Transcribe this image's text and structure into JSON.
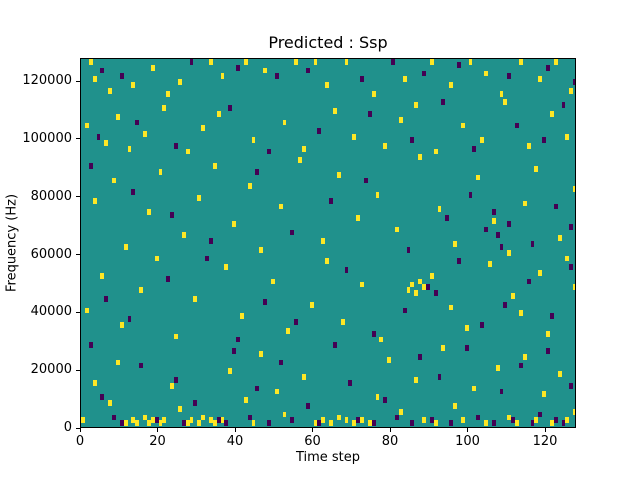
{
  "figure": {
    "title": "Predicted : Ssp",
    "xlabel": "Time step",
    "ylabel": "Frequency (Hz)"
  },
  "chart_data": {
    "type": "heatmap",
    "title": "Predicted : Ssp",
    "xlabel": "Time step",
    "ylabel": "Frequency (Hz)",
    "x_range": [
      0,
      128
    ],
    "y_range_hz": [
      0,
      128000
    ],
    "x_ticks": [
      0,
      20,
      40,
      60,
      80,
      100,
      120
    ],
    "y_ticks": [
      0,
      20000,
      40000,
      60000,
      80000,
      100000,
      120000
    ],
    "grid": false,
    "legend": "none",
    "colormap": "viridis",
    "colors": {
      "background_mid": "#20918c",
      "high": "#fde725",
      "low": "#440154"
    },
    "cell_size": {
      "time_steps": 1,
      "hz": 1000
    },
    "description": "Sparse high (yellow) and low (dark purple) cells over a uniform mid-value teal background; cells are [time_step, frequency_bin], frequency = bin x 1000 Hz",
    "high_cells": [
      [
        2,
        127
      ],
      [
        3,
        120
      ],
      [
        7,
        116
      ],
      [
        13,
        118
      ],
      [
        18,
        124
      ],
      [
        22,
        115
      ],
      [
        25,
        119
      ],
      [
        33,
        127
      ],
      [
        36,
        121
      ],
      [
        42,
        126
      ],
      [
        47,
        123
      ],
      [
        55,
        127
      ],
      [
        60,
        126
      ],
      [
        63,
        118
      ],
      [
        68,
        127
      ],
      [
        75,
        115
      ],
      [
        83,
        120
      ],
      [
        90,
        126
      ],
      [
        95,
        118
      ],
      [
        100,
        127
      ],
      [
        104,
        122
      ],
      [
        108,
        115
      ],
      [
        113,
        126
      ],
      [
        118,
        120
      ],
      [
        122,
        127
      ],
      [
        126,
        116
      ],
      [
        1,
        104
      ],
      [
        6,
        98
      ],
      [
        9,
        107
      ],
      [
        12,
        96
      ],
      [
        16,
        101
      ],
      [
        21,
        110
      ],
      [
        27,
        95
      ],
      [
        31,
        103
      ],
      [
        35,
        108
      ],
      [
        44,
        99
      ],
      [
        52,
        105
      ],
      [
        57,
        96
      ],
      [
        65,
        109
      ],
      [
        70,
        100
      ],
      [
        78,
        97
      ],
      [
        82,
        106
      ],
      [
        86,
        111
      ],
      [
        91,
        95
      ],
      [
        98,
        104
      ],
      [
        103,
        99
      ],
      [
        109,
        112
      ],
      [
        115,
        97
      ],
      [
        121,
        108
      ],
      [
        125,
        100
      ],
      [
        3,
        78
      ],
      [
        8,
        85
      ],
      [
        11,
        62
      ],
      [
        17,
        74
      ],
      [
        20,
        88
      ],
      [
        26,
        66
      ],
      [
        30,
        79
      ],
      [
        34,
        90
      ],
      [
        39,
        70
      ],
      [
        43,
        83
      ],
      [
        46,
        61
      ],
      [
        51,
        76
      ],
      [
        56,
        92
      ],
      [
        62,
        64
      ],
      [
        66,
        87
      ],
      [
        71,
        72
      ],
      [
        76,
        80
      ],
      [
        81,
        68
      ],
      [
        87,
        93
      ],
      [
        92,
        75
      ],
      [
        96,
        63
      ],
      [
        102,
        86
      ],
      [
        106,
        71
      ],
      [
        110,
        60
      ],
      [
        114,
        77
      ],
      [
        117,
        89
      ],
      [
        123,
        65
      ],
      [
        127,
        82
      ],
      [
        1,
        40
      ],
      [
        5,
        52
      ],
      [
        10,
        35
      ],
      [
        15,
        47
      ],
      [
        19,
        58
      ],
      [
        24,
        31
      ],
      [
        29,
        44
      ],
      [
        37,
        55
      ],
      [
        41,
        38
      ],
      [
        49,
        50
      ],
      [
        53,
        33
      ],
      [
        59,
        42
      ],
      [
        63,
        57
      ],
      [
        67,
        36
      ],
      [
        72,
        49
      ],
      [
        77,
        30
      ],
      [
        84,
        47
      ],
      [
        85,
        49
      ],
      [
        86,
        46
      ],
      [
        87,
        50
      ],
      [
        88,
        48
      ],
      [
        90,
        52
      ],
      [
        95,
        41
      ],
      [
        99,
        34
      ],
      [
        105,
        56
      ],
      [
        111,
        45
      ],
      [
        113,
        39
      ],
      [
        118,
        53
      ],
      [
        120,
        32
      ],
      [
        125,
        58
      ],
      [
        127,
        48
      ],
      [
        0,
        2
      ],
      [
        3,
        15
      ],
      [
        7,
        8
      ],
      [
        9,
        22
      ],
      [
        11,
        1
      ],
      [
        13,
        2
      ],
      [
        14,
        1
      ],
      [
        16,
        3
      ],
      [
        17,
        1
      ],
      [
        18,
        2
      ],
      [
        20,
        1
      ],
      [
        21,
        2
      ],
      [
        23,
        14
      ],
      [
        25,
        6
      ],
      [
        27,
        1
      ],
      [
        28,
        2
      ],
      [
        30,
        1
      ],
      [
        31,
        3
      ],
      [
        33,
        2
      ],
      [
        34,
        1
      ],
      [
        36,
        2
      ],
      [
        38,
        19
      ],
      [
        42,
        9
      ],
      [
        44,
        1
      ],
      [
        46,
        25
      ],
      [
        50,
        12
      ],
      [
        52,
        4
      ],
      [
        57,
        17
      ],
      [
        60,
        1
      ],
      [
        62,
        2
      ],
      [
        64,
        1
      ],
      [
        66,
        3
      ],
      [
        68,
        2
      ],
      [
        70,
        1
      ],
      [
        72,
        2
      ],
      [
        74,
        1
      ],
      [
        76,
        10
      ],
      [
        79,
        23
      ],
      [
        82,
        5
      ],
      [
        86,
        16
      ],
      [
        88,
        2
      ],
      [
        91,
        1
      ],
      [
        93,
        27
      ],
      [
        96,
        7
      ],
      [
        98,
        2
      ],
      [
        101,
        13
      ],
      [
        104,
        1
      ],
      [
        107,
        20
      ],
      [
        110,
        3
      ],
      [
        112,
        1
      ],
      [
        114,
        24
      ],
      [
        117,
        2
      ],
      [
        119,
        11
      ],
      [
        121,
        1
      ],
      [
        123,
        18
      ],
      [
        125,
        2
      ],
      [
        127,
        5
      ]
    ],
    "low_cells": [
      [
        5,
        123
      ],
      [
        10,
        121
      ],
      [
        28,
        126
      ],
      [
        40,
        124
      ],
      [
        50,
        121
      ],
      [
        58,
        123
      ],
      [
        72,
        120
      ],
      [
        80,
        126
      ],
      [
        88,
        122
      ],
      [
        97,
        125
      ],
      [
        110,
        121
      ],
      [
        120,
        124
      ],
      [
        127,
        119
      ],
      [
        4,
        100
      ],
      [
        14,
        105
      ],
      [
        24,
        97
      ],
      [
        38,
        110
      ],
      [
        48,
        95
      ],
      [
        61,
        102
      ],
      [
        74,
        108
      ],
      [
        85,
        99
      ],
      [
        93,
        112
      ],
      [
        101,
        96
      ],
      [
        112,
        104
      ],
      [
        119,
        99
      ],
      [
        124,
        111
      ],
      [
        2,
        90
      ],
      [
        13,
        81
      ],
      [
        23,
        73
      ],
      [
        33,
        64
      ],
      [
        45,
        88
      ],
      [
        54,
        67
      ],
      [
        64,
        78
      ],
      [
        73,
        85
      ],
      [
        84,
        61
      ],
      [
        94,
        72
      ],
      [
        100,
        80
      ],
      [
        116,
        63
      ],
      [
        122,
        76
      ],
      [
        126,
        69
      ],
      [
        104,
        68
      ],
      [
        106,
        74
      ],
      [
        108,
        62
      ],
      [
        110,
        70
      ],
      [
        107,
        66
      ],
      [
        6,
        44
      ],
      [
        12,
        37
      ],
      [
        22,
        51
      ],
      [
        32,
        58
      ],
      [
        40,
        30
      ],
      [
        47,
        43
      ],
      [
        55,
        36
      ],
      [
        68,
        54
      ],
      [
        75,
        32
      ],
      [
        83,
        40
      ],
      [
        89,
        48
      ],
      [
        91,
        46
      ],
      [
        97,
        57
      ],
      [
        103,
        35
      ],
      [
        109,
        42
      ],
      [
        115,
        50
      ],
      [
        121,
        38
      ],
      [
        126,
        55
      ],
      [
        2,
        28
      ],
      [
        5,
        10
      ],
      [
        8,
        3
      ],
      [
        10,
        1
      ],
      [
        15,
        21
      ],
      [
        19,
        2
      ],
      [
        24,
        16
      ],
      [
        26,
        1
      ],
      [
        29,
        8
      ],
      [
        35,
        2
      ],
      [
        37,
        1
      ],
      [
        39,
        26
      ],
      [
        43,
        3
      ],
      [
        45,
        13
      ],
      [
        48,
        1
      ],
      [
        51,
        22
      ],
      [
        54,
        2
      ],
      [
        58,
        7
      ],
      [
        61,
        1
      ],
      [
        65,
        28
      ],
      [
        69,
        15
      ],
      [
        71,
        2
      ],
      [
        75,
        1
      ],
      [
        78,
        9
      ],
      [
        81,
        3
      ],
      [
        85,
        1
      ],
      [
        87,
        24
      ],
      [
        90,
        2
      ],
      [
        92,
        17
      ],
      [
        95,
        1
      ],
      [
        99,
        27
      ],
      [
        102,
        3
      ],
      [
        106,
        1
      ],
      [
        108,
        12
      ],
      [
        111,
        2
      ],
      [
        113,
        21
      ],
      [
        116,
        1
      ],
      [
        118,
        4
      ],
      [
        120,
        26
      ],
      [
        122,
        2
      ],
      [
        124,
        1
      ],
      [
        126,
        14
      ]
    ]
  }
}
